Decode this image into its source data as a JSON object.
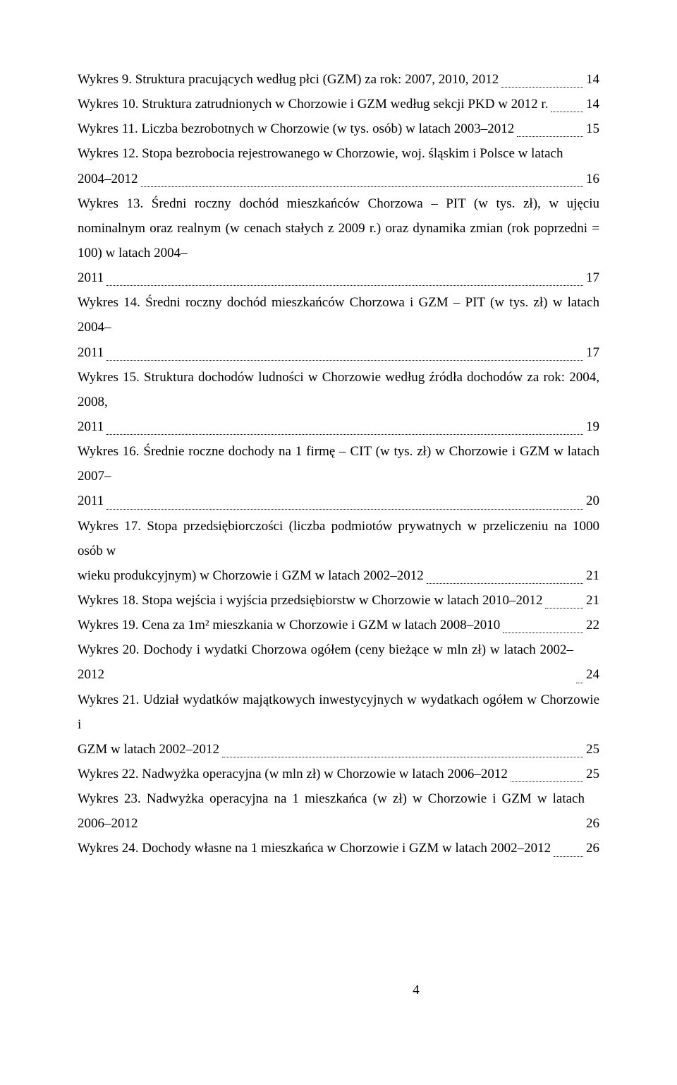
{
  "page": {
    "number": "4",
    "background": "#ffffff",
    "text_color": "#000000",
    "font_family": "Times New Roman",
    "base_font_size_pt": 14
  },
  "entries": [
    {
      "pre": "",
      "last": "Wykres 9. Struktura pracujących według płci (GZM) za rok: 2007, 2010, 2012",
      "page": "14"
    },
    {
      "pre": "",
      "last": "Wykres 10. Struktura zatrudnionych w Chorzowie i GZM według sekcji PKD w 2012 r. ",
      "page": "14"
    },
    {
      "pre": "",
      "last": "Wykres 11. Liczba bezrobotnych w Chorzowie (w tys. osób) w latach 2003–2012",
      "page": "15"
    },
    {
      "pre": "Wykres 12. Stopa bezrobocia rejestrowanego w Chorzowie, woj. śląskim i Polsce w latach",
      "last": "2004–2012",
      "page": "16"
    },
    {
      "pre": "Wykres 13. Średni roczny dochód mieszkańców Chorzowa – PIT (w tys. zł), w ujęciu nominalnym oraz realnym (w cenach stałych z 2009 r.) oraz dynamika zmian (rok poprzedni = 100) w latach 2004–",
      "last": "2011",
      "page": "17"
    },
    {
      "pre": "Wykres 14. Średni roczny dochód mieszkańców Chorzowa i GZM – PIT (w tys. zł) w latach 2004–",
      "last": "2011",
      "page": "17"
    },
    {
      "pre": "Wykres 15. Struktura dochodów ludności w Chorzowie według źródła dochodów za rok: 2004, 2008,",
      "last": "2011",
      "page": "19"
    },
    {
      "pre": "Wykres 16. Średnie roczne dochody na 1 firmę – CIT (w tys. zł) w Chorzowie i GZM w latach 2007–",
      "last": "2011",
      "page": "20"
    },
    {
      "pre": "Wykres 17. Stopa przedsiębiorczości (liczba podmiotów prywatnych w przeliczeniu na 1000 osób w",
      "last": "wieku produkcyjnym) w Chorzowie i GZM w latach 2002–2012",
      "page": "21"
    },
    {
      "pre": "",
      "last": "Wykres 18. Stopa wejścia i wyjścia przedsiębiorstw w Chorzowie w latach 2010–2012",
      "page": "21"
    },
    {
      "pre": "",
      "last": "Wykres 19. Cena za 1m² mieszkania w Chorzowie i GZM w latach 2008–2010",
      "page": "22"
    },
    {
      "pre": "",
      "last": "Wykres 20. Dochody i wydatki Chorzowa ogółem (ceny bieżące w mln zł) w latach 2002–2012",
      "page": "24"
    },
    {
      "pre": "Wykres 21. Udział wydatków majątkowych inwestycyjnych w wydatkach ogółem w Chorzowie i",
      "last": "GZM w latach 2002–2012",
      "page": "25"
    },
    {
      "pre": "",
      "last": "Wykres 22. Nadwyżka operacyjna (w mln zł) w Chorzowie w latach 2006–2012",
      "page": "25"
    },
    {
      "pre": "",
      "last": "Wykres 23. Nadwyżka operacyjna na 1 mieszkańca (w zł) w Chorzowie i GZM w latach 2006–2012",
      "page": "26",
      "nolead": true
    },
    {
      "pre": "",
      "last": "Wykres 24. Dochody własne na 1 mieszkańca w Chorzowie i GZM w latach 2002–2012",
      "page": "26"
    }
  ]
}
